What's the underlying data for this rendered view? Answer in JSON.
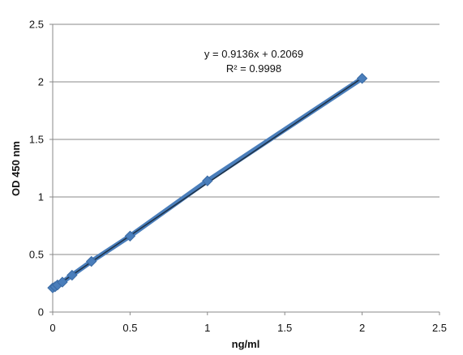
{
  "chart_data": {
    "type": "scatter",
    "title": "",
    "xlabel": "ng/ml",
    "ylabel": "OD 450 nm",
    "xlim": [
      0,
      2.5
    ],
    "ylim": [
      0,
      2.5
    ],
    "grid": "horizontal",
    "legend": "none",
    "x_ticks": [
      "0",
      "0.5",
      "1",
      "1.5",
      "2",
      "2.5"
    ],
    "y_ticks": [
      "0",
      "0.5",
      "1",
      "1.5",
      "2",
      "2.5"
    ],
    "series": [
      {
        "x": [
          0,
          0.0156,
          0.031,
          0.0625,
          0.125,
          0.25,
          0.5,
          1,
          2
        ],
        "y": [
          0.21,
          0.22,
          0.235,
          0.26,
          0.32,
          0.44,
          0.66,
          1.14,
          2.03
        ],
        "color": "#4a7ebb"
      }
    ],
    "trendline": {
      "slope": 0.9136,
      "intercept": 0.2069,
      "color": "#1f3349"
    },
    "annotations": {
      "equation": "y = 0.9136x + 0.2069",
      "r2": "R² = 0.9998"
    }
  }
}
